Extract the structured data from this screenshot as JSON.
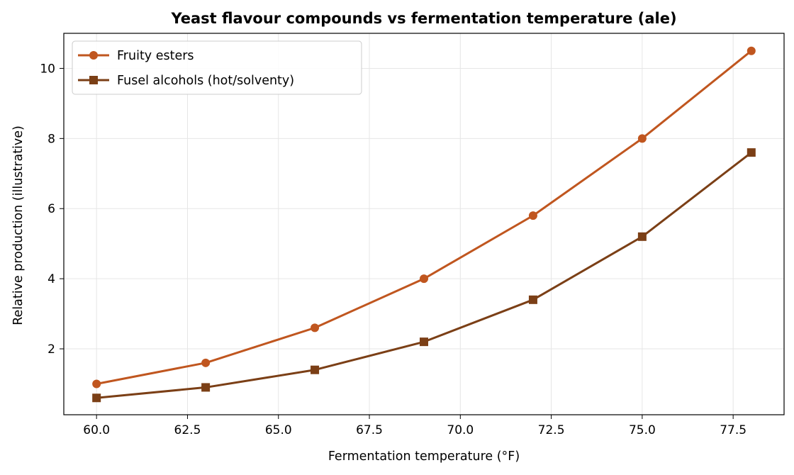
{
  "chart_data": {
    "type": "line",
    "title": "Yeast flavour compounds vs fermentation temperature (ale)",
    "xlabel": "Fermentation temperature (°F)",
    "ylabel": "Relative production (illustrative)",
    "x": [
      60,
      63,
      66,
      69,
      72,
      75,
      78
    ],
    "xlim": [
      59.1,
      78.9
    ],
    "ylim": [
      0.12,
      11.0
    ],
    "xticks": [
      60.0,
      62.5,
      65.0,
      67.5,
      70.0,
      72.5,
      75.0,
      77.5
    ],
    "xtick_labels": [
      "60.0",
      "62.5",
      "65.0",
      "67.5",
      "70.0",
      "72.5",
      "75.0",
      "77.5"
    ],
    "yticks": [
      2,
      4,
      6,
      8,
      10
    ],
    "ytick_labels": [
      "2",
      "4",
      "6",
      "8",
      "10"
    ],
    "grid": true,
    "legend_position": "top-left",
    "series": [
      {
        "name": "Fruity esters",
        "values": [
          1.0,
          1.6,
          2.6,
          4.0,
          5.8,
          8.0,
          10.5
        ],
        "color": "#c0561f",
        "marker": "circle"
      },
      {
        "name": "Fusel alcohols (hot/solventy)",
        "values": [
          0.6,
          0.9,
          1.4,
          2.2,
          3.4,
          5.2,
          7.6
        ],
        "color": "#7b3f16",
        "marker": "square"
      }
    ]
  }
}
